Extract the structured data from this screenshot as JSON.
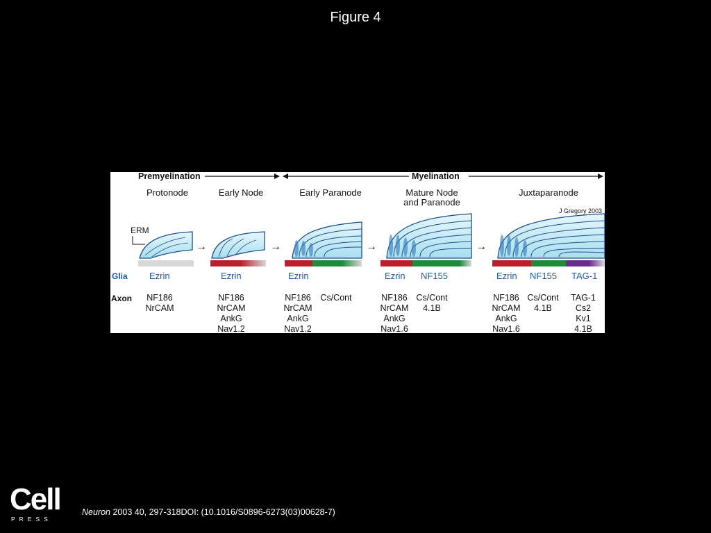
{
  "figure_title": "Figure 4",
  "diagram": {
    "header": {
      "left": "Premyelination",
      "right": "Myelination"
    },
    "stages": [
      "Protonode",
      "Early Node",
      "Early Paranode",
      "Mature Node\nand Paranode",
      "Juxtaparanode"
    ],
    "credit": "J Gregory 2003",
    "erm_label": "ERM",
    "row_labels": {
      "glia": "Glia",
      "axon": "Axon"
    },
    "glia": [
      "Ezrin",
      "Ezrin",
      "Ezrin",
      "Ezrin",
      "NF155",
      "Ezrin",
      "NF155",
      "TAG-1"
    ],
    "axon": [
      [
        "NF186",
        "NrCAM"
      ],
      [
        "NF186",
        "NrCAM",
        "AnkG",
        "Nav1.2"
      ],
      [
        "NF186",
        "NrCAM",
        "AnkG",
        "Nav1.2"
      ],
      [
        "Cs/Cont"
      ],
      [
        "NF186",
        "NrCAM",
        "AnkG",
        "Nav1.6"
      ],
      [
        "Cs/Cont",
        "4.1B"
      ],
      [
        "NF186",
        "NrCAM",
        "AnkG",
        "Nav1.6"
      ],
      [
        "Cs/Cont",
        "4.1B"
      ],
      [
        "TAG-1",
        "Cs2",
        "Kv1",
        "4.1B"
      ]
    ],
    "arrow_glyph": "→",
    "colors": {
      "node": "#b8202a",
      "paranode": "#1f8a3a",
      "juxta": "#6a2a8a",
      "axon_bare": "#d8d8d8",
      "glia_fill": "#bfe8f5",
      "glia_stroke": "#1b4f8a"
    }
  },
  "logo": {
    "word": "Cell",
    "press": "PRESS"
  },
  "citation": {
    "journal": "Neuron",
    "details": " 2003 40, 297-318DOI: (10.1016/S0896-6273(03)00628-7)"
  }
}
